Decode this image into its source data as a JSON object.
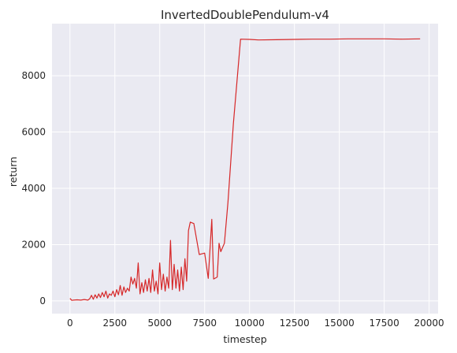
{
  "chart_data": {
    "type": "line",
    "title": "InvertedDoublePendulum-v4",
    "xlabel": "timestep",
    "ylabel": "return",
    "xlim": [
      -1000,
      20500
    ],
    "ylim": [
      -450,
      9850
    ],
    "xticks": [
      0,
      2500,
      5000,
      7500,
      10000,
      12500,
      15000,
      17500,
      20000
    ],
    "xtick_labels": [
      "0",
      "2500",
      "5000",
      "7500",
      "10000",
      "12500",
      "15000",
      "17500",
      "20000"
    ],
    "yticks": [
      0,
      2000,
      4000,
      6000,
      8000
    ],
    "ytick_labels": [
      "0",
      "2000",
      "4000",
      "6000",
      "8000"
    ],
    "grid": true,
    "series": [
      {
        "color": "#d62728",
        "x": [
          0,
          100,
          200,
          400,
          600,
          800,
          1000,
          1100,
          1200,
          1300,
          1400,
          1500,
          1600,
          1700,
          1800,
          1900,
          2000,
          2100,
          2200,
          2300,
          2400,
          2500,
          2600,
          2700,
          2800,
          2900,
          3000,
          3100,
          3200,
          3300,
          3400,
          3500,
          3600,
          3700,
          3800,
          3900,
          4000,
          4100,
          4200,
          4300,
          4400,
          4500,
          4600,
          4700,
          4800,
          4900,
          5000,
          5100,
          5200,
          5300,
          5400,
          5500,
          5600,
          5700,
          5800,
          5900,
          6000,
          6100,
          6200,
          6300,
          6400,
          6500,
          6600,
          6700,
          6900,
          7200,
          7500,
          7700,
          7900,
          8000,
          8200,
          8300,
          8400,
          8600,
          8800,
          9100,
          9500,
          10000,
          10500,
          11500,
          12500,
          13500,
          14500,
          15500,
          16500,
          17500,
          18500,
          19500
        ],
        "y": [
          90,
          20,
          30,
          40,
          30,
          50,
          30,
          80,
          200,
          60,
          220,
          100,
          250,
          120,
          300,
          150,
          350,
          100,
          250,
          200,
          350,
          150,
          400,
          220,
          550,
          200,
          500,
          300,
          450,
          350,
          850,
          600,
          800,
          450,
          1350,
          250,
          650,
          300,
          750,
          350,
          800,
          300,
          1100,
          350,
          700,
          250,
          1350,
          400,
          950,
          350,
          850,
          450,
          2150,
          400,
          1300,
          450,
          1100,
          350,
          1200,
          400,
          1500,
          700,
          2500,
          2800,
          2750,
          1650,
          1700,
          800,
          2900,
          780,
          850,
          2050,
          1750,
          2050,
          3500,
          6300,
          9300,
          9290,
          9270,
          9280,
          9290,
          9300,
          9300,
          9310,
          9310,
          9310,
          9300,
          9310
        ]
      }
    ]
  }
}
